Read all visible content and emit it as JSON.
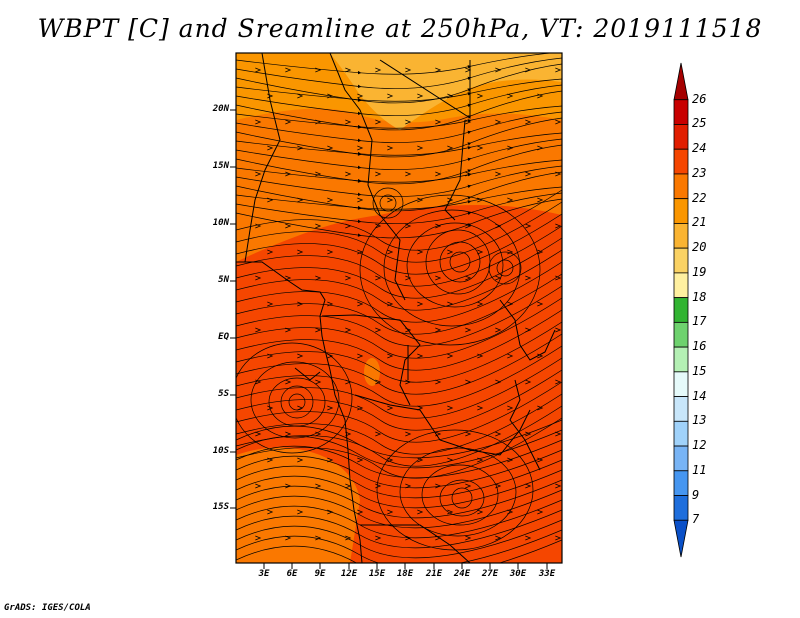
{
  "title": "WBPT [C] and Sreamline at 250hPa, VT: 2019111518",
  "credit": "GrADS: IGES/COLA",
  "lat_labels": [
    "20N",
    "15N",
    "10N",
    "5N",
    "EQ",
    "5S",
    "10S",
    "15S"
  ],
  "lon_labels": [
    "3E",
    "6E",
    "9E",
    "12E",
    "15E",
    "18E",
    "21E",
    "24E",
    "27E",
    "30E",
    "33E"
  ],
  "colorbar": {
    "labels": [
      "26",
      "25",
      "24",
      "23",
      "22",
      "21",
      "20",
      "19",
      "18",
      "17",
      "16",
      "15",
      "14",
      "13",
      "12",
      "11",
      "9",
      "7"
    ],
    "colors": [
      "#a50000",
      "#c80000",
      "#e11e00",
      "#f54600",
      "#fa7800",
      "#fa9600",
      "#fab432",
      "#fad264",
      "#fff0a0",
      "#32b432",
      "#6ed26e",
      "#b4f0b4",
      "#e6fafa",
      "#c8e6fa",
      "#a0d2fa",
      "#78b4f5",
      "#4696f0",
      "#1e6edc",
      "#0a50c8"
    ]
  },
  "map_colors": {
    "hot": "#f54600",
    "warm": "#fa7800",
    "mild": "#fa9600",
    "cool": "#fab432",
    "line": "#000000"
  }
}
